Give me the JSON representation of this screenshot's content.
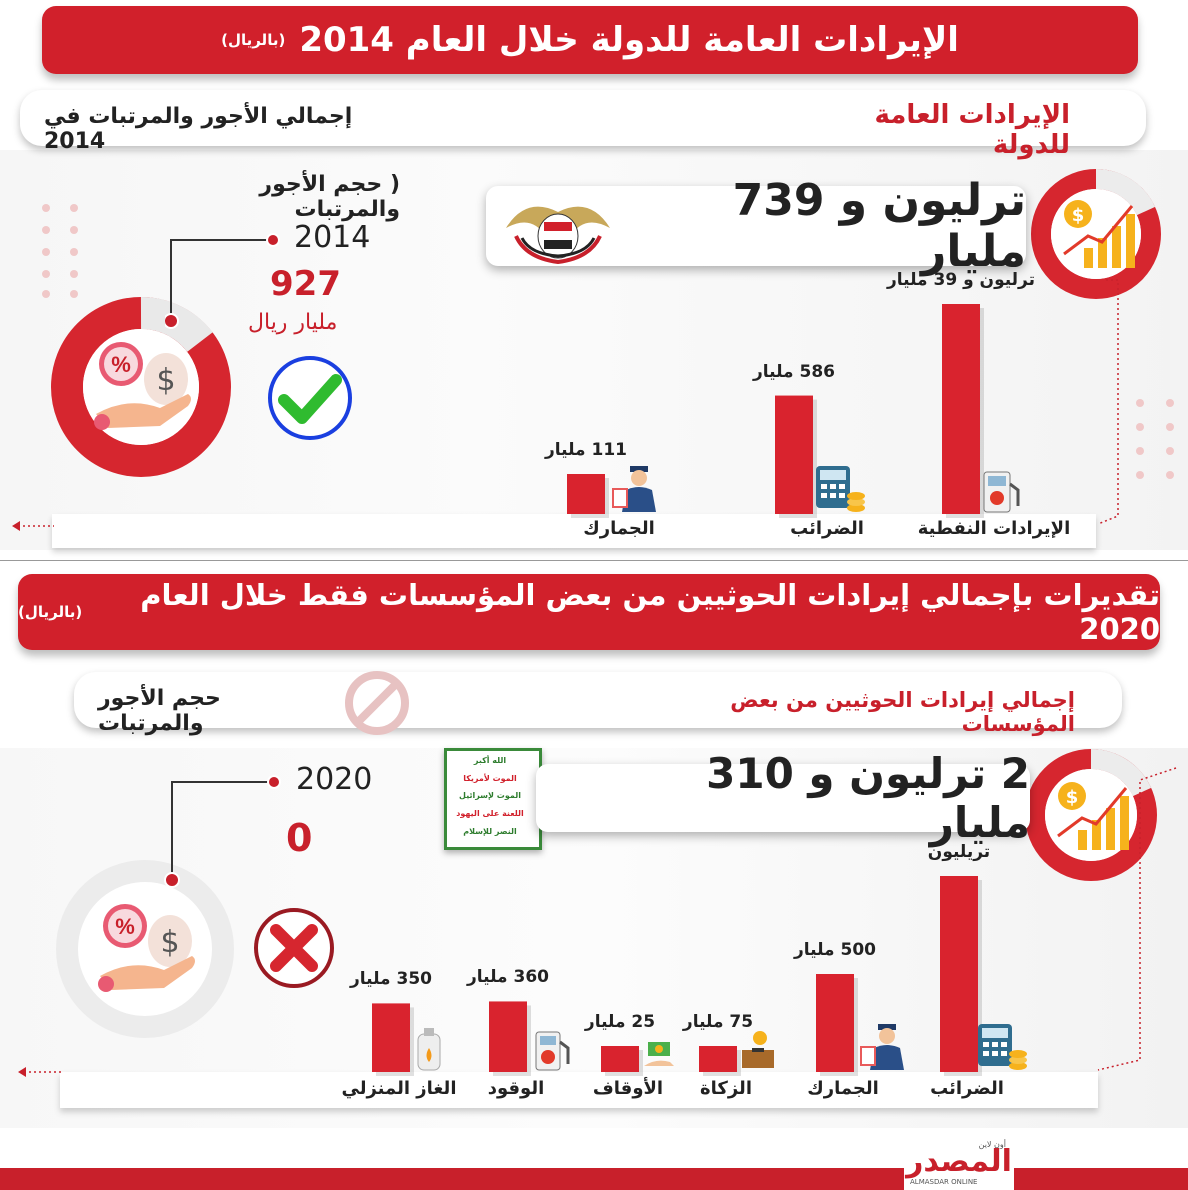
{
  "section1": {
    "title": "الإيرادات العامة للدولة خلال العام 2014",
    "unit": "(بالريال)",
    "pill_left": "إجمالي الأجور والمرتبات في 2014",
    "pill_right": "الإيرادات العامة للدولة",
    "total": "ترليون و 739 مليار",
    "wages_heading": "حجم الأجور والمرتبات",
    "wages_bracket": "(",
    "wages_year": "2014",
    "wages_value": "927",
    "wages_unit": "مليار ريال"
  },
  "section2": {
    "title": "تقديرات بإجمالي إيرادات الحوثيين من بعض المؤسسات فقط خلال العام 2020",
    "unit": "(بالريال)",
    "pill_left": "حجم الأجور والمرتبات",
    "pill_right": "إجمالي إيرادات الحوثيين من بعض المؤسسات",
    "total": "2 ترليون و 310 مليار",
    "wages_year": "2020",
    "wages_value": "0",
    "slogan": [
      "الله أكبر",
      "الموت لأمريكا",
      "الموت لإسرائيل",
      "اللعنة على اليهود",
      "النصر للإسلام"
    ]
  },
  "logo": {
    "text": "المصدر",
    "small_top": "أون لاين",
    "small_bottom": "ALMASDAR ONLINE"
  },
  "colors": {
    "accent": "#d1202b",
    "bar": "#d9232e"
  },
  "chart_data": [
    {
      "type": "bar",
      "categories": [
        "الإيرادات النفطية",
        "الضرائب",
        "الجمارك"
      ],
      "values": [
        1039,
        586,
        111
      ],
      "value_labels": [
        "ترليون و 39 مليار",
        "586 مليار",
        "111 مليار"
      ],
      "units": "مليار ريال"
    },
    {
      "type": "bar",
      "categories": [
        "الضرائب",
        "الجمارك",
        "الزكاة",
        "الأوقاف",
        "الوقود",
        "الغاز المنزلي"
      ],
      "values": [
        1000,
        500,
        75,
        25,
        360,
        350
      ],
      "value_labels": [
        "تريليون",
        "500 مليار",
        "75 مليار",
        "25 مليار",
        "360 مليار",
        "350 مليار"
      ],
      "units": "مليار ريال"
    }
  ]
}
